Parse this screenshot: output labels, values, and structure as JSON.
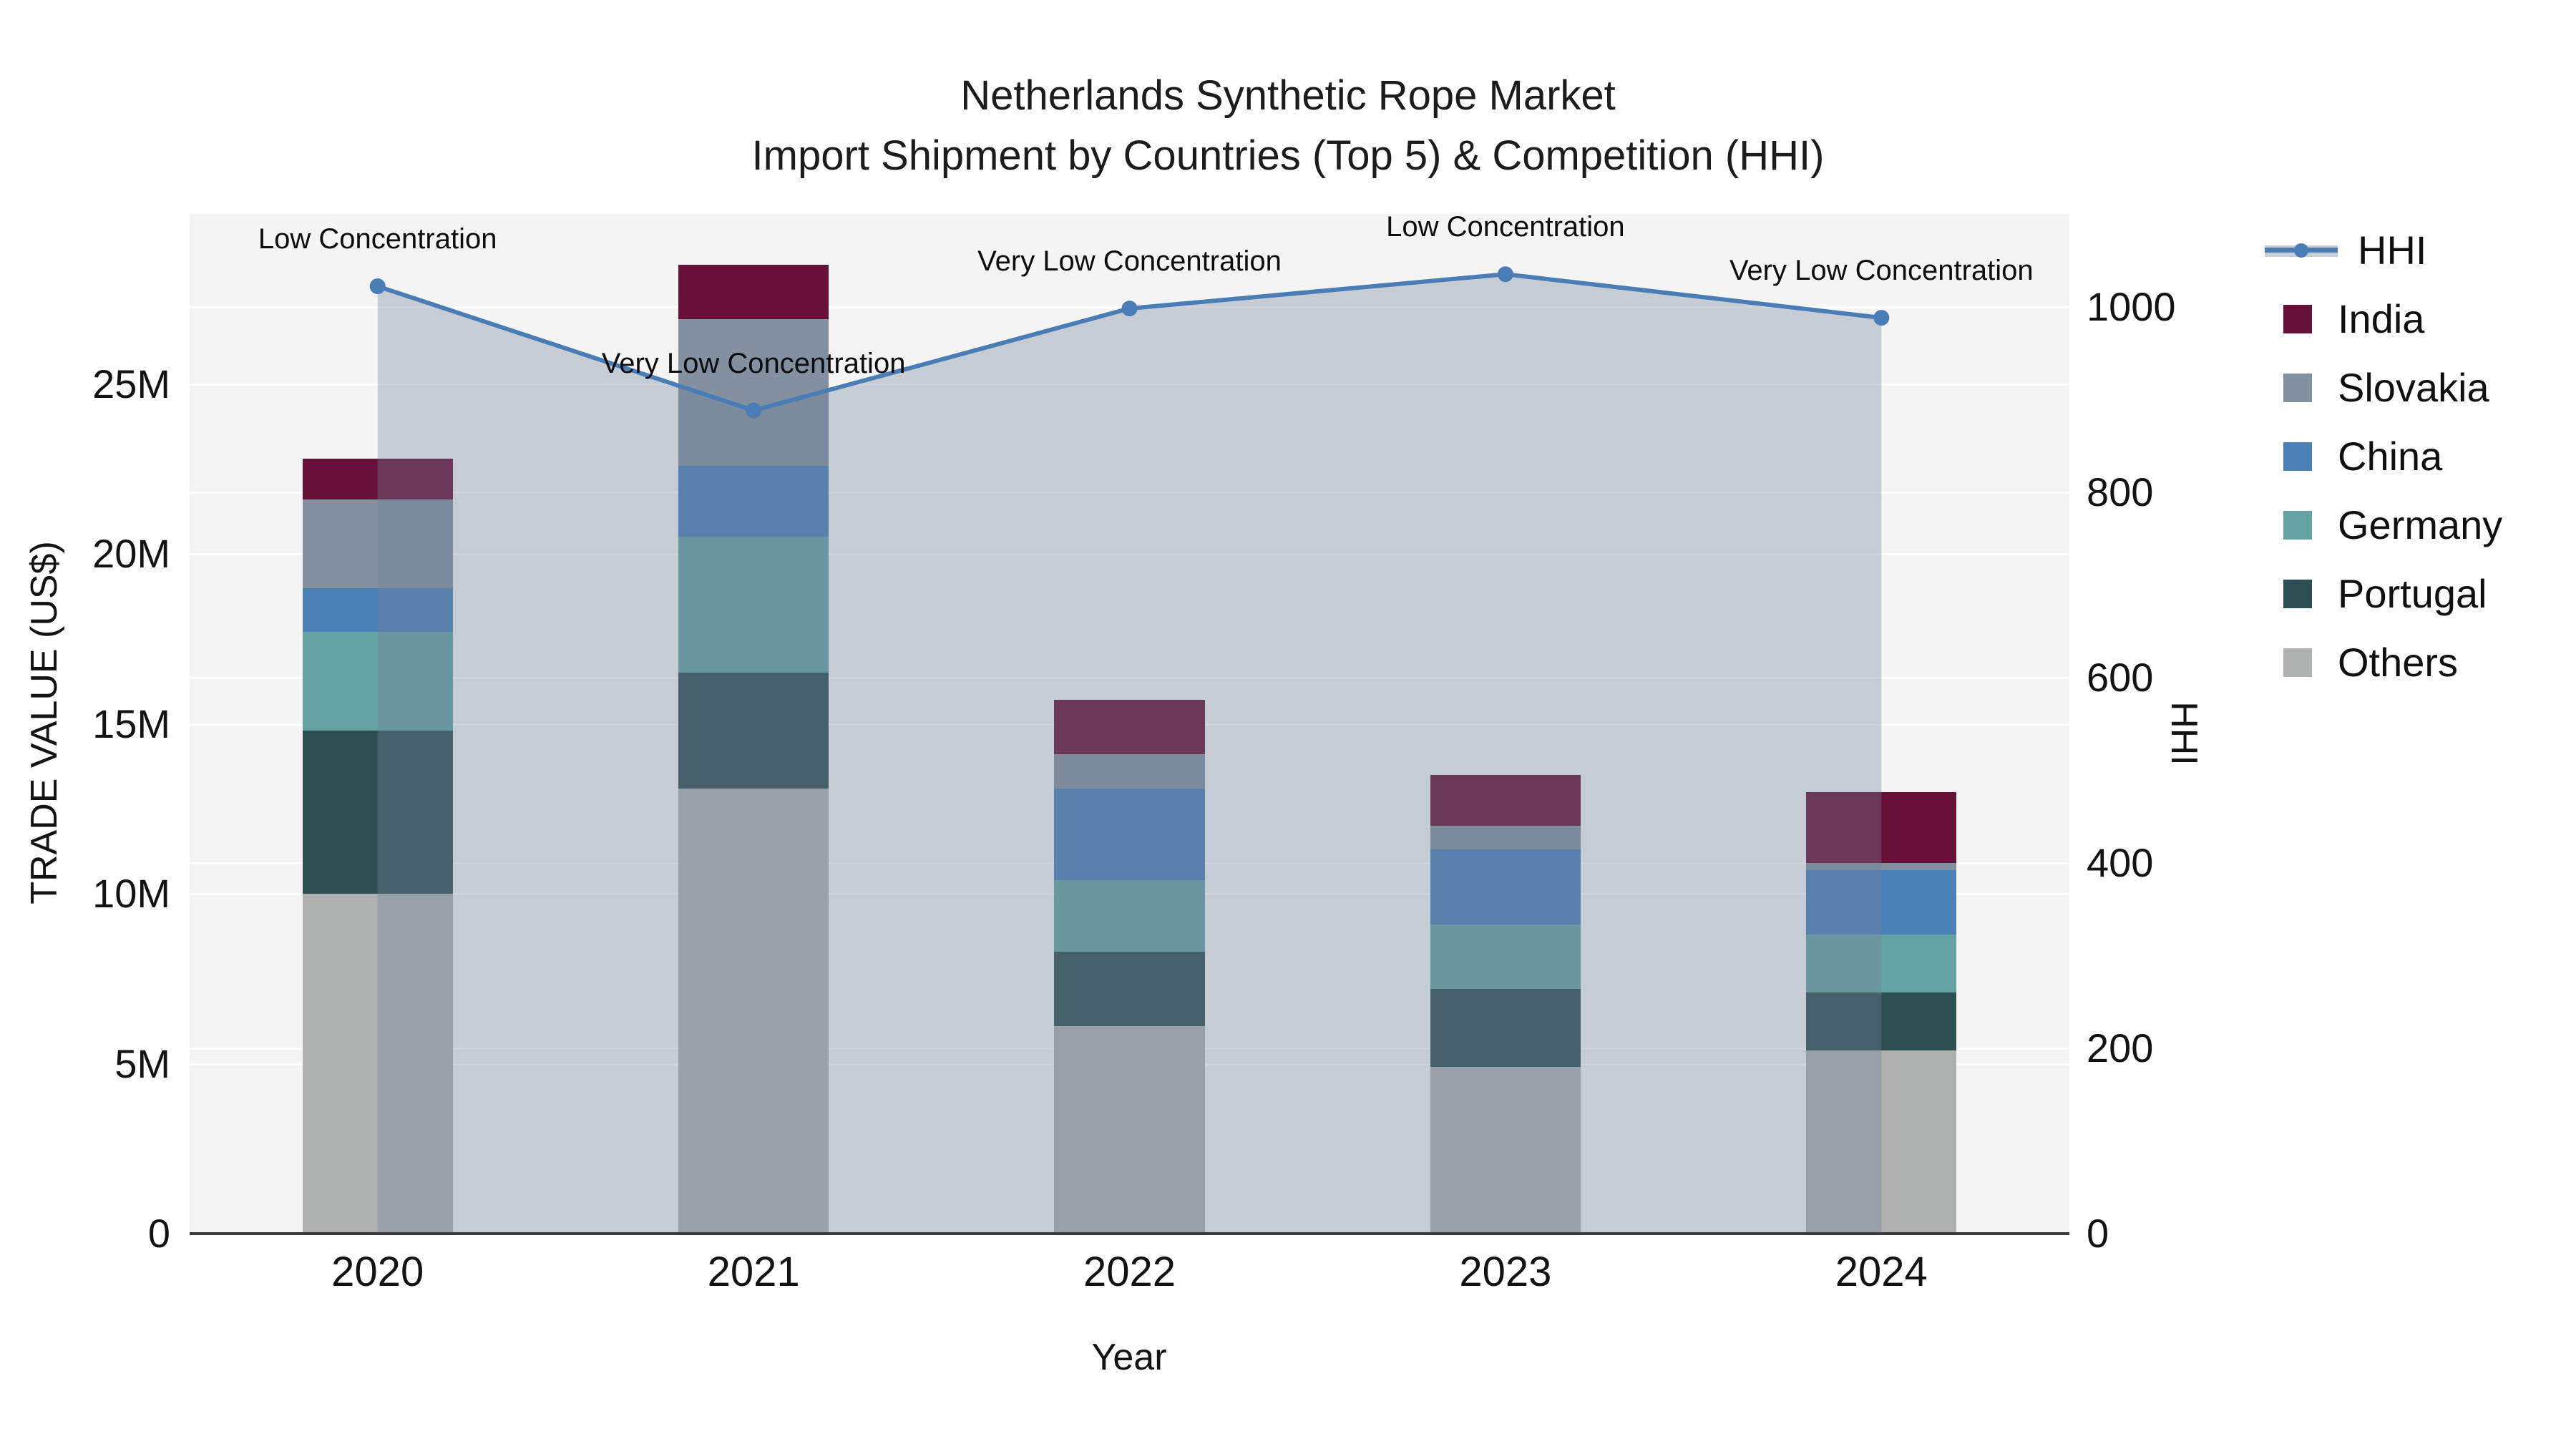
{
  "title": {
    "line1": "Netherlands Synthetic Rope Market",
    "line2": "Import Shipment by Countries (Top 5) & Competition (HHI)"
  },
  "axes": {
    "x_title": "Year",
    "y_left_title": "TRADE VALUE (US$)",
    "y_right_title": "HHI",
    "y_left_tick_labels": [
      "0",
      "5M",
      "10M",
      "15M",
      "20M",
      "25M"
    ],
    "y_left_tick_values": [
      0,
      5,
      10,
      15,
      20,
      25
    ],
    "y_right_tick_labels": [
      "0",
      "200",
      "400",
      "600",
      "800",
      "1000"
    ],
    "y_right_tick_values": [
      0,
      200,
      400,
      600,
      800,
      1000
    ]
  },
  "colors": {
    "plot_bg": "#F3F4F3",
    "grid": "#FFFFFF",
    "axis_line": "#3B3B3B",
    "hhi_line": "#4A7DB5",
    "hhi_fill": "rgba(115,128,152,0.35)",
    "india": "#681138",
    "slovakia": "#8290A0",
    "china": "#4A82B8",
    "germany": "#63A3A3",
    "portugal": "#2D4F51",
    "others": "#AFB1B0"
  },
  "chart_data": {
    "type": [
      "bar",
      "line"
    ],
    "title": "Netherlands Synthetic Rope Market — Import Shipment by Countries (Top 5) & Competition (HHI)",
    "xlabel": "Year",
    "ylabel_left": "TRADE VALUE (US$)",
    "ylabel_right": "HHI",
    "categories": [
      "2020",
      "2021",
      "2022",
      "2023",
      "2024"
    ],
    "y_left_unit": "millions US$",
    "y_left_range": [
      0,
      30
    ],
    "y_right_range": [
      0,
      1100
    ],
    "grid": true,
    "legend_position": "right",
    "bar_stack_order_bottom_to_top": [
      "Others",
      "Portugal",
      "Germany",
      "China",
      "Slovakia",
      "India"
    ],
    "series": [
      {
        "name": "Others",
        "color_key": "others",
        "values": [
          10.0,
          13.1,
          6.1,
          4.9,
          5.4
        ]
      },
      {
        "name": "Portugal",
        "color_key": "portugal",
        "values": [
          4.8,
          3.4,
          2.2,
          2.3,
          1.7
        ]
      },
      {
        "name": "Germany",
        "color_key": "germany",
        "values": [
          2.9,
          4.0,
          2.1,
          1.9,
          1.7
        ]
      },
      {
        "name": "China",
        "color_key": "china",
        "values": [
          1.3,
          2.1,
          2.7,
          2.2,
          1.9
        ]
      },
      {
        "name": "Slovakia",
        "color_key": "slovakia",
        "values": [
          2.6,
          4.3,
          1.0,
          0.7,
          0.2
        ]
      },
      {
        "name": "India",
        "color_key": "india",
        "values": [
          1.2,
          1.6,
          1.6,
          1.5,
          2.1
        ]
      }
    ],
    "bar_totals": [
      22.8,
      28.5,
      15.7,
      13.5,
      13.0
    ],
    "hhi_series": {
      "name": "HHI",
      "values": [
        1022,
        888,
        998,
        1035,
        988
      ],
      "annotations": [
        "Low Concentration",
        "Very Low Concentration",
        "Very Low Concentration",
        "Low Concentration",
        "Very Low Concentration"
      ]
    }
  },
  "legend": {
    "items": [
      {
        "label": "HHI",
        "type": "line",
        "color_key": "hhi_line"
      },
      {
        "label": "India",
        "type": "swatch",
        "color_key": "india"
      },
      {
        "label": "Slovakia",
        "type": "swatch",
        "color_key": "slovakia"
      },
      {
        "label": "China",
        "type": "swatch",
        "color_key": "china"
      },
      {
        "label": "Germany",
        "type": "swatch",
        "color_key": "germany"
      },
      {
        "label": "Portugal",
        "type": "swatch",
        "color_key": "portugal"
      },
      {
        "label": "Others",
        "type": "swatch",
        "color_key": "others"
      }
    ]
  }
}
